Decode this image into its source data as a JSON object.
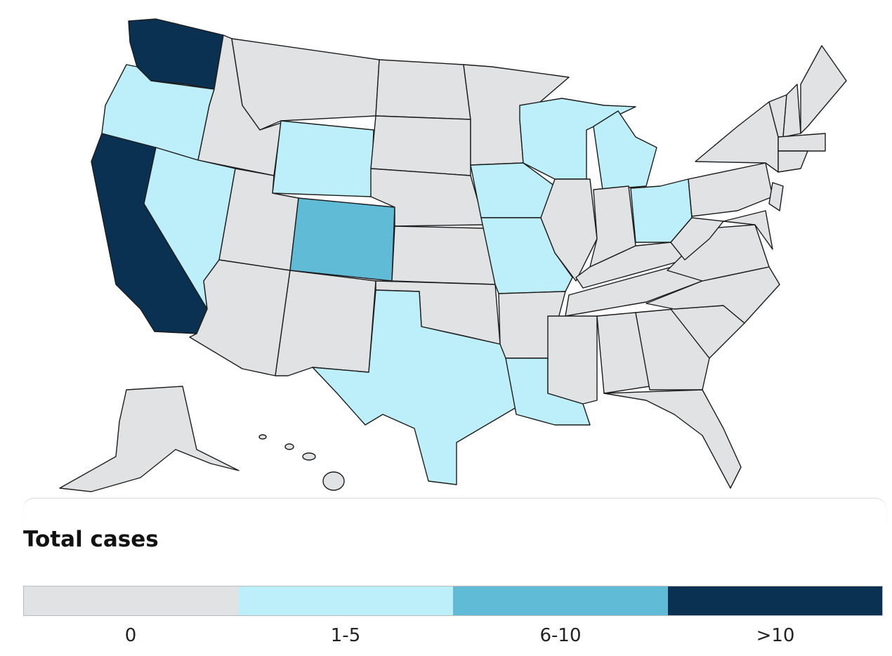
{
  "legend": {
    "title": "Total cases",
    "items": [
      {
        "label": "0",
        "color": "#e1e2e4"
      },
      {
        "label": "1-5",
        "color": "#bdeffb"
      },
      {
        "label": "6-10",
        "color": "#5fbbd6"
      },
      {
        "label": ">10",
        "color": "#0a3152"
      }
    ]
  }
}
